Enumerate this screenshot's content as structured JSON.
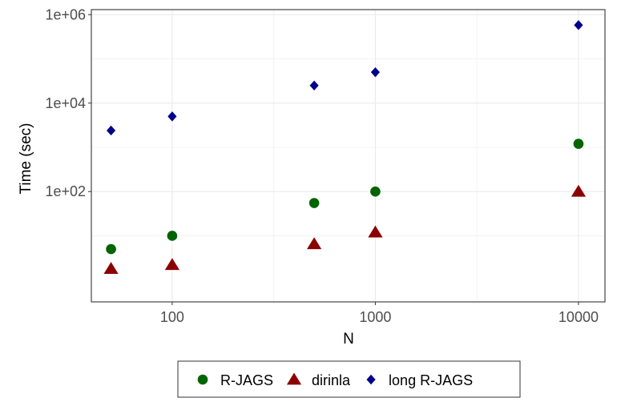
{
  "chart_data": {
    "type": "scatter",
    "xlabel": "N",
    "ylabel": "Time (sec)",
    "x_scale": "log",
    "y_scale": "log",
    "xlim": [
      40,
      13500
    ],
    "ylim": [
      0.32,
      1300000
    ],
    "x_ticks": [
      100,
      1000,
      10000
    ],
    "x_tick_labels": [
      "100",
      "1000",
      "10000"
    ],
    "y_ticks": [
      100,
      10000,
      1000000
    ],
    "y_tick_labels": [
      "1e+02",
      "1e+04",
      "1e+06"
    ],
    "grid": true,
    "legend_position": "bottom",
    "series": [
      {
        "name": "R-JAGS",
        "marker": "circle",
        "color": "#006400",
        "x": [
          50,
          100,
          500,
          1000,
          10000
        ],
        "y": [
          5,
          10,
          55,
          100,
          1200
        ]
      },
      {
        "name": "dirinla",
        "marker": "triangle",
        "color": "#8b0000",
        "x": [
          50,
          100,
          500,
          1000,
          10000
        ],
        "y": [
          1.8,
          2.2,
          6.5,
          12,
          100
        ]
      },
      {
        "name": "long R-JAGS",
        "marker": "diamond",
        "color": "#00008b",
        "x": [
          50,
          100,
          500,
          1000,
          10000
        ],
        "y": [
          2400,
          5000,
          25000,
          50000,
          580000
        ]
      }
    ]
  }
}
